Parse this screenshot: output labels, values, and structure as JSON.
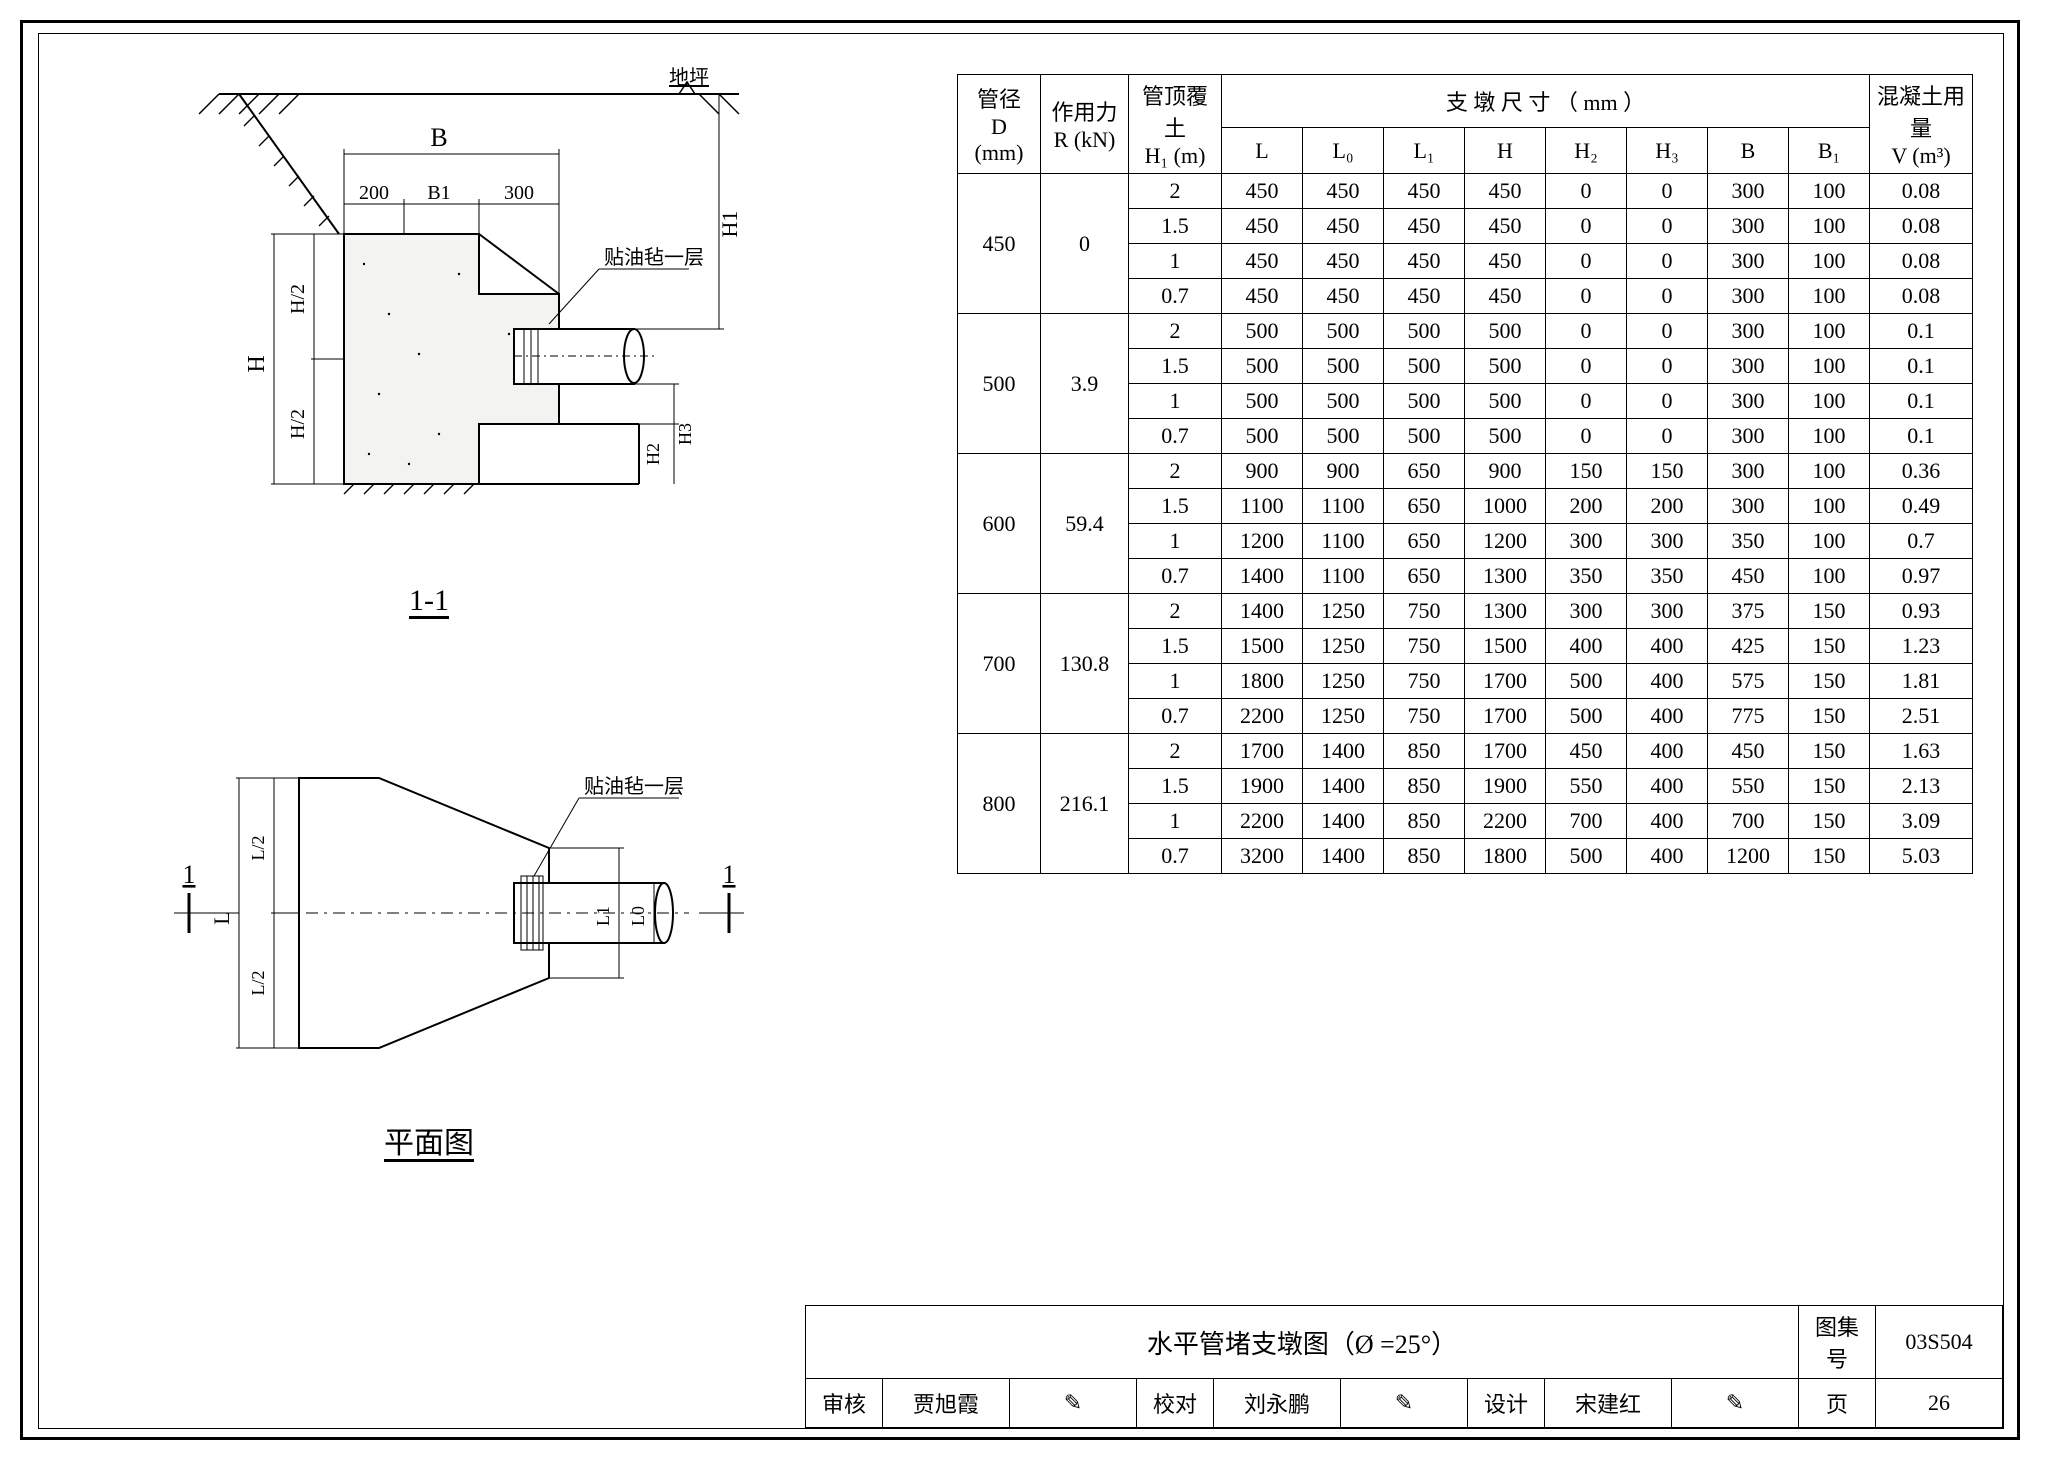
{
  "figure": {
    "ground_label": "地坪",
    "dim_B": "B",
    "dim_200": "200",
    "dim_B1": "B1",
    "dim_300": "300",
    "dim_H1": "H1",
    "dim_H": "H",
    "dim_Hhalf_top": "H/2",
    "dim_Hhalf_bot": "H/2",
    "dim_H2": "H2",
    "dim_H3": "H3",
    "note_felt1": "贴油毡一层",
    "section_label": "1-1",
    "plan_label": "平面图",
    "plan_dim_L": "L",
    "plan_dim_Lhalf_top": "L/2",
    "plan_dim_Lhalf_bot": "L/2",
    "plan_dim_L1": "L1",
    "plan_dim_L0": "L0",
    "plan_cut_1L": "1",
    "plan_cut_1R": "1",
    "note_felt2": "贴油毡一层"
  },
  "table": {
    "hdr_D": "管径",
    "hdr_D_unit": "D (mm)",
    "hdr_R": "作用力",
    "hdr_R_unit": "R (kN)",
    "hdr_H1": "管顶覆土",
    "hdr_H1_unit": "H₁ (m)",
    "hdr_dims": "支 墩 尺 寸 （ mm ）",
    "hdr_L": "L",
    "hdr_L0": "L₀",
    "hdr_L1": "L₁",
    "hdr_H": "H",
    "hdr_H2": "H₂",
    "hdr_H3": "H₃",
    "hdr_B": "B",
    "hdr_B1": "B₁",
    "hdr_V": "混凝土用量",
    "hdr_V_unit": "V (m³)",
    "groups": [
      {
        "D": "450",
        "R": "0",
        "rows": [
          {
            "H1": "2",
            "L": "450",
            "L0": "450",
            "L1": "450",
            "H": "450",
            "H2": "0",
            "H3": "0",
            "B": "300",
            "B1": "100",
            "V": "0.08"
          },
          {
            "H1": "1.5",
            "L": "450",
            "L0": "450",
            "L1": "450",
            "H": "450",
            "H2": "0",
            "H3": "0",
            "B": "300",
            "B1": "100",
            "V": "0.08"
          },
          {
            "H1": "1",
            "L": "450",
            "L0": "450",
            "L1": "450",
            "H": "450",
            "H2": "0",
            "H3": "0",
            "B": "300",
            "B1": "100",
            "V": "0.08"
          },
          {
            "H1": "0.7",
            "L": "450",
            "L0": "450",
            "L1": "450",
            "H": "450",
            "H2": "0",
            "H3": "0",
            "B": "300",
            "B1": "100",
            "V": "0.08"
          }
        ]
      },
      {
        "D": "500",
        "R": "3.9",
        "rows": [
          {
            "H1": "2",
            "L": "500",
            "L0": "500",
            "L1": "500",
            "H": "500",
            "H2": "0",
            "H3": "0",
            "B": "300",
            "B1": "100",
            "V": "0.1"
          },
          {
            "H1": "1.5",
            "L": "500",
            "L0": "500",
            "L1": "500",
            "H": "500",
            "H2": "0",
            "H3": "0",
            "B": "300",
            "B1": "100",
            "V": "0.1"
          },
          {
            "H1": "1",
            "L": "500",
            "L0": "500",
            "L1": "500",
            "H": "500",
            "H2": "0",
            "H3": "0",
            "B": "300",
            "B1": "100",
            "V": "0.1"
          },
          {
            "H1": "0.7",
            "L": "500",
            "L0": "500",
            "L1": "500",
            "H": "500",
            "H2": "0",
            "H3": "0",
            "B": "300",
            "B1": "100",
            "V": "0.1"
          }
        ]
      },
      {
        "D": "600",
        "R": "59.4",
        "rows": [
          {
            "H1": "2",
            "L": "900",
            "L0": "900",
            "L1": "650",
            "H": "900",
            "H2": "150",
            "H3": "150",
            "B": "300",
            "B1": "100",
            "V": "0.36"
          },
          {
            "H1": "1.5",
            "L": "1100",
            "L0": "1100",
            "L1": "650",
            "H": "1000",
            "H2": "200",
            "H3": "200",
            "B": "300",
            "B1": "100",
            "V": "0.49"
          },
          {
            "H1": "1",
            "L": "1200",
            "L0": "1100",
            "L1": "650",
            "H": "1200",
            "H2": "300",
            "H3": "300",
            "B": "350",
            "B1": "100",
            "V": "0.7"
          },
          {
            "H1": "0.7",
            "L": "1400",
            "L0": "1100",
            "L1": "650",
            "H": "1300",
            "H2": "350",
            "H3": "350",
            "B": "450",
            "B1": "100",
            "V": "0.97"
          }
        ]
      },
      {
        "D": "700",
        "R": "130.8",
        "rows": [
          {
            "H1": "2",
            "L": "1400",
            "L0": "1250",
            "L1": "750",
            "H": "1300",
            "H2": "300",
            "H3": "300",
            "B": "375",
            "B1": "150",
            "V": "0.93"
          },
          {
            "H1": "1.5",
            "L": "1500",
            "L0": "1250",
            "L1": "750",
            "H": "1500",
            "H2": "400",
            "H3": "400",
            "B": "425",
            "B1": "150",
            "V": "1.23"
          },
          {
            "H1": "1",
            "L": "1800",
            "L0": "1250",
            "L1": "750",
            "H": "1700",
            "H2": "500",
            "H3": "400",
            "B": "575",
            "B1": "150",
            "V": "1.81"
          },
          {
            "H1": "0.7",
            "L": "2200",
            "L0": "1250",
            "L1": "750",
            "H": "1700",
            "H2": "500",
            "H3": "400",
            "B": "775",
            "B1": "150",
            "V": "2.51"
          }
        ]
      },
      {
        "D": "800",
        "R": "216.1",
        "rows": [
          {
            "H1": "2",
            "L": "1700",
            "L0": "1400",
            "L1": "850",
            "H": "1700",
            "H2": "450",
            "H3": "400",
            "B": "450",
            "B1": "150",
            "V": "1.63"
          },
          {
            "H1": "1.5",
            "L": "1900",
            "L0": "1400",
            "L1": "850",
            "H": "1900",
            "H2": "550",
            "H3": "400",
            "B": "550",
            "B1": "150",
            "V": "2.13"
          },
          {
            "H1": "1",
            "L": "2200",
            "L0": "1400",
            "L1": "850",
            "H": "2200",
            "H2": "700",
            "H3": "400",
            "B": "700",
            "B1": "150",
            "V": "3.09"
          },
          {
            "H1": "0.7",
            "L": "3200",
            "L0": "1400",
            "L1": "850",
            "H": "1800",
            "H2": "500",
            "H3": "400",
            "B": "1200",
            "B1": "150",
            "V": "5.03"
          }
        ]
      }
    ]
  },
  "titleblock": {
    "title": "水平管堵支墩图（Ø =25°）",
    "atlas_label": "图集号",
    "atlas_no": "03S504",
    "review_label": "审核",
    "review_name": "贾旭霞",
    "check_label": "校对",
    "check_name": "刘永鹏",
    "design_label": "设计",
    "design_name": "宋建红",
    "page_label": "页",
    "page_no": "26"
  }
}
